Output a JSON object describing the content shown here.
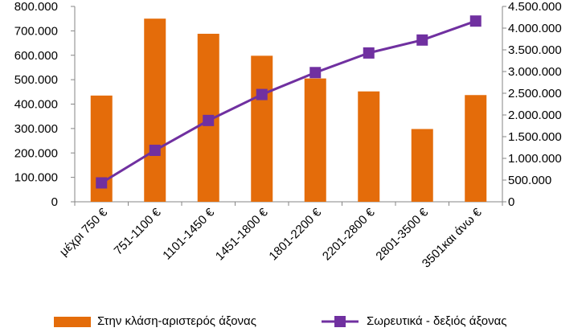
{
  "chart_data": {
    "type": "bar",
    "categories": [
      "μέχρι 750 €",
      "751-1100 €",
      "1101-1450 €",
      "1451-1800 €",
      "1801-2200 €",
      "2201-2800 €",
      "2801-3500 €",
      "3501και άνω €"
    ],
    "series": [
      {
        "name": "Στην κλάση-αριστερός άξονας",
        "type": "bar",
        "axis": "left",
        "color": "#E46C0A",
        "values": [
          435000,
          750000,
          688000,
          598000,
          505000,
          452000,
          298000,
          437000
        ]
      },
      {
        "name": "Σωρευτικά - δεξιός άξονας",
        "type": "line",
        "axis": "right",
        "color": "#7030A0",
        "marker": "square",
        "values": [
          435000,
          1185000,
          1873000,
          2471000,
          2976000,
          3428000,
          3726000,
          4163000
        ]
      }
    ],
    "y_left": {
      "lim": [
        0,
        800000
      ],
      "ticks": [
        0,
        100000,
        200000,
        300000,
        400000,
        500000,
        600000,
        700000,
        800000
      ],
      "tick_labels": [
        "0",
        "100.000",
        "200.000",
        "300.000",
        "400.000",
        "500.000",
        "600.000",
        "700.000",
        "800.000"
      ]
    },
    "y_right": {
      "lim": [
        0,
        4500000
      ],
      "ticks": [
        0,
        500000,
        1000000,
        1500000,
        2000000,
        2500000,
        3000000,
        3500000,
        4000000,
        4500000
      ],
      "tick_labels": [
        "0",
        "500.000",
        "1.000.000",
        "1.500.000",
        "2.000.000",
        "2.500.000",
        "3.000.000",
        "3.500.000",
        "4.000.000",
        "4.500.000"
      ]
    },
    "title": "",
    "xlabel": "",
    "grid": false,
    "legend_position": "bottom"
  }
}
